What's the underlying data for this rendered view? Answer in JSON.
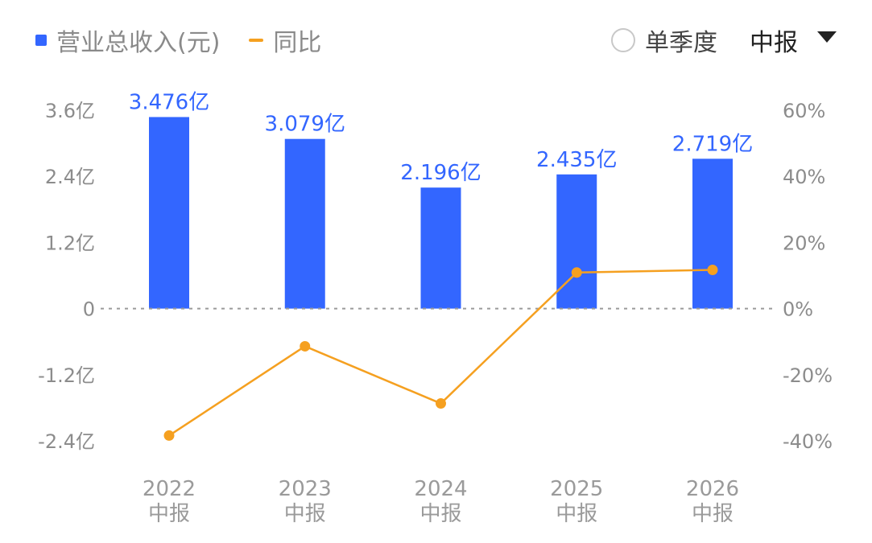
{
  "legend": {
    "bar_label": "营业总收入(元)",
    "line_label": "同比"
  },
  "controls": {
    "radio_label": "单季度",
    "period_value": "中报"
  },
  "colors": {
    "bar": "#3366ff",
    "line": "#f5a020",
    "text_muted": "#8c8c8c",
    "zero_line": "#9a9a9a"
  },
  "chart_data": {
    "type": "bar",
    "categories": [
      [
        "2022",
        "中报"
      ],
      [
        "2023",
        "中报"
      ],
      [
        "2024",
        "中报"
      ],
      [
        "2025",
        "中报"
      ],
      [
        "2026",
        "中报"
      ]
    ],
    "series": [
      {
        "name": "营业总收入(元)",
        "type": "bar",
        "axis": "left",
        "values": [
          3.476,
          3.079,
          2.196,
          2.435,
          2.719
        ],
        "value_labels": [
          "3.476亿",
          "3.079亿",
          "2.196亿",
          "2.435亿",
          "2.719亿"
        ]
      },
      {
        "name": "同比",
        "type": "line",
        "axis": "right",
        "values": [
          -38.4,
          -11.4,
          -28.7,
          10.9,
          11.7
        ]
      }
    ],
    "left_axis": {
      "ylim": [
        -2.4,
        3.6
      ],
      "ticks": [
        3.6,
        2.4,
        1.2,
        0,
        -1.2,
        -2.4
      ],
      "tick_labels": [
        "3.6亿",
        "2.4亿",
        "1.2亿",
        "0",
        "-1.2亿",
        "-2.4亿"
      ]
    },
    "right_axis": {
      "ylim": [
        -40,
        60
      ],
      "ticks": [
        60,
        40,
        20,
        0,
        -20,
        -40
      ],
      "tick_labels": [
        "60%",
        "40%",
        "20%",
        "0%",
        "-20%",
        "-40%"
      ]
    },
    "grid": false,
    "zero_line": "dashed",
    "legend_position": "top-left"
  }
}
